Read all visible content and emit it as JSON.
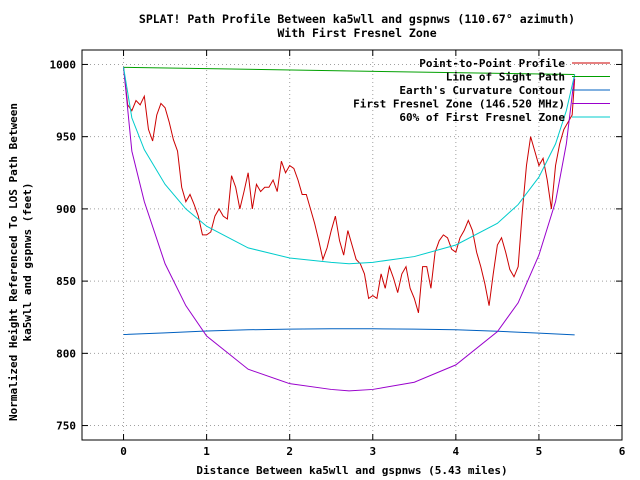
{
  "chart_data": {
    "type": "line",
    "title": "SPLAT! Path Profile Between ka5wll and gspnws (110.67° azimuth)",
    "subtitle": "With First Fresnel Zone",
    "xlabel": "Distance Between ka5wll and gspnws (5.43 miles)",
    "ylabel_line1": "Normalized Height Referenced To LOS Path Between",
    "ylabel_line2": "ka5wll and gspnws (feet)",
    "xlim": [
      -0.5,
      6
    ],
    "ylim": [
      740,
      1010
    ],
    "x_ticks": [
      0,
      1,
      2,
      3,
      4,
      5,
      6
    ],
    "y_ticks": [
      750,
      800,
      850,
      900,
      950,
      1000
    ],
    "grid": true,
    "legend_position": "top-right",
    "series": [
      {
        "name": "Point-to-Point Profile",
        "color": "#cc0000",
        "x": [
          0,
          0.05,
          0.1,
          0.15,
          0.2,
          0.25,
          0.3,
          0.35,
          0.4,
          0.45,
          0.5,
          0.55,
          0.6,
          0.65,
          0.7,
          0.75,
          0.8,
          0.85,
          0.9,
          0.95,
          1.0,
          1.05,
          1.1,
          1.15,
          1.2,
          1.25,
          1.3,
          1.35,
          1.4,
          1.45,
          1.5,
          1.55,
          1.6,
          1.65,
          1.7,
          1.75,
          1.8,
          1.85,
          1.9,
          1.95,
          2.0,
          2.05,
          2.1,
          2.15,
          2.2,
          2.25,
          2.3,
          2.35,
          2.4,
          2.45,
          2.5,
          2.55,
          2.6,
          2.65,
          2.7,
          2.75,
          2.8,
          2.85,
          2.9,
          2.95,
          3.0,
          3.05,
          3.1,
          3.15,
          3.2,
          3.25,
          3.3,
          3.35,
          3.4,
          3.45,
          3.5,
          3.55,
          3.6,
          3.65,
          3.7,
          3.75,
          3.8,
          3.85,
          3.9,
          3.95,
          4.0,
          4.05,
          4.1,
          4.15,
          4.2,
          4.25,
          4.3,
          4.35,
          4.4,
          4.45,
          4.5,
          4.55,
          4.6,
          4.65,
          4.7,
          4.75,
          4.8,
          4.85,
          4.9,
          4.95,
          5.0,
          5.05,
          5.1,
          5.15,
          5.2,
          5.25,
          5.3,
          5.35,
          5.4,
          5.43
        ],
        "y": [
          998,
          972,
          968,
          975,
          972,
          978,
          955,
          947,
          965,
          973,
          970,
          960,
          948,
          940,
          915,
          905,
          910,
          903,
          895,
          882,
          882,
          884,
          895,
          900,
          895,
          893,
          923,
          915,
          900,
          912,
          925,
          900,
          917,
          912,
          915,
          915,
          920,
          912,
          933,
          925,
          930,
          928,
          920,
          910,
          910,
          900,
          890,
          878,
          865,
          873,
          885,
          895,
          878,
          868,
          885,
          875,
          865,
          862,
          855,
          838,
          840,
          838,
          855,
          845,
          860,
          852,
          842,
          855,
          860,
          845,
          838,
          828,
          860,
          860,
          845,
          870,
          878,
          882,
          880,
          872,
          870,
          880,
          885,
          892,
          885,
          870,
          860,
          848,
          833,
          855,
          875,
          880,
          870,
          858,
          853,
          860,
          898,
          930,
          950,
          940,
          930,
          935,
          920,
          900,
          930,
          945,
          955,
          960,
          965,
          990
        ]
      },
      {
        "name": "Line of Sight Path",
        "color": "#00a000",
        "x": [
          0,
          5.43
        ],
        "y": [
          998,
          993
        ]
      },
      {
        "name": "Earth's Curvature Contour",
        "color": "#0060c0",
        "x": [
          0,
          0.5,
          1.0,
          1.5,
          2.0,
          2.5,
          3.0,
          3.5,
          4.0,
          4.5,
          5.0,
          5.43
        ],
        "y": [
          813,
          814.2,
          815.5,
          816.3,
          816.8,
          817,
          817,
          816.8,
          816.3,
          815.3,
          814,
          812.8
        ]
      },
      {
        "name": "First Fresnel Zone (146.520 MHz)",
        "color": "#9900cc",
        "x": [
          0,
          0.1,
          0.25,
          0.5,
          0.75,
          1.0,
          1.5,
          2.0,
          2.5,
          2.715,
          3.0,
          3.5,
          4.0,
          4.5,
          4.75,
          5.0,
          5.2,
          5.33,
          5.43
        ],
        "y": [
          998,
          940,
          905,
          862,
          833,
          812,
          789,
          779,
          775,
          774,
          775,
          780,
          792,
          815,
          835,
          868,
          905,
          945,
          993
        ]
      },
      {
        "name": "60% of First Fresnel Zone",
        "color": "#00cccc",
        "x": [
          0,
          0.1,
          0.25,
          0.5,
          0.75,
          1.0,
          1.5,
          2.0,
          2.5,
          2.715,
          3.0,
          3.5,
          4.0,
          4.5,
          4.75,
          5.0,
          5.2,
          5.33,
          5.43
        ],
        "y": [
          998,
          963,
          941,
          917,
          900,
          888,
          873,
          866,
          863,
          862,
          863,
          867,
          875,
          890,
          903,
          922,
          945,
          968,
          993
        ]
      }
    ]
  }
}
